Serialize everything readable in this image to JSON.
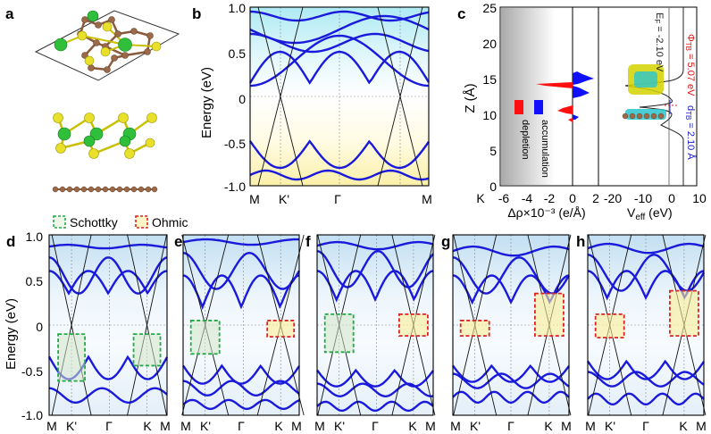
{
  "figure": {
    "panel_labels": [
      "a",
      "b",
      "c",
      "d",
      "e",
      "f",
      "g",
      "h"
    ],
    "legend": {
      "schottky_label": "Schottky",
      "ohmic_label": "Ohmic",
      "schottky_color": "#22aa44",
      "ohmic_color": "#dd2222"
    },
    "band_color": "#1a1adc",
    "graphene_color": "#111111",
    "colors": {
      "atom_green": "#2fbf3a",
      "atom_yellow": "#e8e02a",
      "atom_brown": "#9a6a4a",
      "depletion": "#ff1010",
      "accumulation": "#1010ff",
      "cyan_region": "#d7f5f7",
      "yellow_region": "#fbf3c4"
    }
  },
  "panel_b": {
    "ylabel": "Energy (eV)",
    "yticks": [
      "1.0",
      "0.5",
      "0",
      "-0.5",
      "-1.0"
    ],
    "xticks": [
      "M",
      "K'",
      "Γ",
      "K",
      "M"
    ]
  },
  "panel_c": {
    "ylabel": "Z (Å)",
    "yticks": [
      "25",
      "20",
      "15",
      "10",
      "5",
      "0"
    ],
    "left_xlabel": "Δρ×10⁻³ (e/Å)",
    "left_xticks": [
      "-6",
      "-4",
      "-2",
      "0",
      "2"
    ],
    "right_xlabel": "V",
    "right_xlabel_sub": "eff",
    "right_xlabel_unit": " (eV)",
    "right_xticks": [
      "-20",
      "-10",
      "0",
      "10"
    ],
    "k_label": "K",
    "depletion_label": "depletion",
    "accumulation_label": "accumulation",
    "ef_text": "E",
    "ef_sub": "F",
    "ef_value": " = -2.10 eV",
    "phi_text": "Φ",
    "phi_sub": "TB",
    "phi_value": " = 5.07 eV",
    "d_text": "d",
    "d_sub": "TB",
    "d_value": " = 2.10 Å"
  },
  "panel_bottom": {
    "ylabel": "Energy (eV)",
    "yticks": [
      "1.0",
      "0.5",
      "0",
      "-0.5",
      "-1.0"
    ],
    "xticks_first": [
      "M",
      "K'",
      "Γ",
      "K",
      "M"
    ],
    "xticks_other": [
      "M",
      "K'",
      "Γ",
      "K",
      "M"
    ]
  }
}
